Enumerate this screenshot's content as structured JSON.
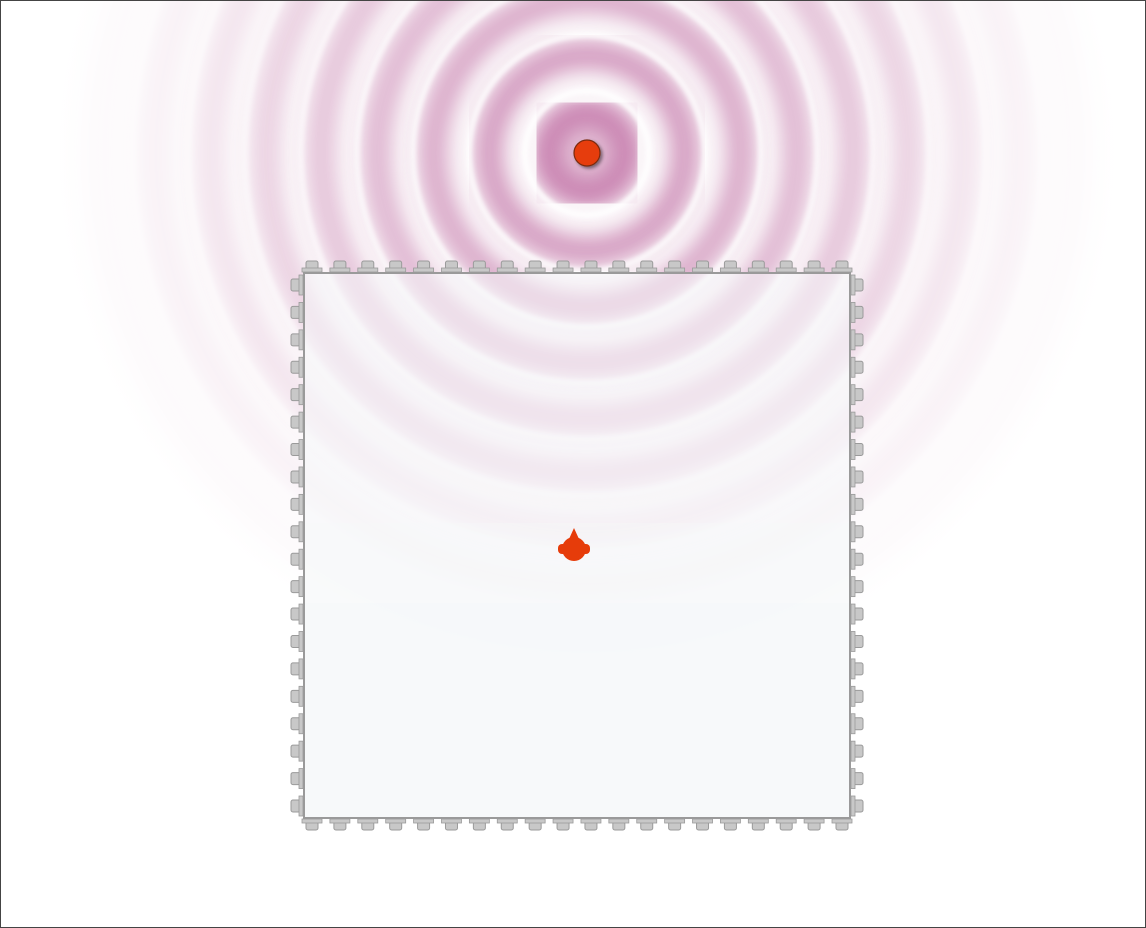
{
  "scene": {
    "type": "wave-interference-simulation",
    "background_color": "#ffffff",
    "frame_color": "#444444",
    "wave_color": "#b04a8c",
    "wave_peak_color": "#ffffff"
  },
  "source": {
    "icon": "wave-source-dot",
    "color": "#e63c0a",
    "ring_count": 9
  },
  "detector": {
    "icon": "detector-probe",
    "color": "#e63c0a"
  },
  "barrier": {
    "fill_color": "#f6f8f9",
    "edge_color": "#9a9a9a",
    "bump_color": "#c8c8c8",
    "horizontal_bumps": 20,
    "vertical_bumps": 20
  }
}
